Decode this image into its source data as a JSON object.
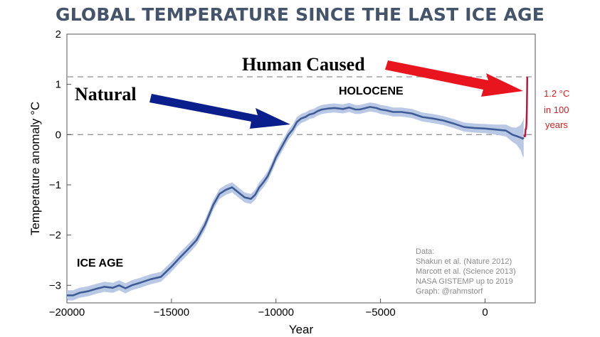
{
  "chart_data": {
    "type": "line",
    "title": "GLOBAL TEMPERATURE SINCE THE LAST ICE AGE",
    "xlabel": "Year",
    "ylabel": "Temperature anomaly °C",
    "xlim": [
      -20000,
      2400
    ],
    "ylim": [
      -3.35,
      2
    ],
    "xticks": [
      -20000,
      -15000,
      -10000,
      -5000,
      0
    ],
    "xtick_labels": [
      "−20000",
      "−15000",
      "−10000",
      "−5000",
      "0"
    ],
    "yticks": [
      -3,
      -2,
      -1,
      0,
      1,
      2
    ],
    "ytick_labels": [
      "−3",
      "−2",
      "−1",
      "0",
      "1",
      "2"
    ],
    "reference_lines": [
      0,
      1.15
    ],
    "grid": false,
    "colors": {
      "line": "#3f5c96",
      "band": "#b9c8e4",
      "modern": "#c0143c",
      "natural_arrow": "#0a1e8c",
      "human_arrow": "#e8141e",
      "reference": "#9a9a9a"
    },
    "series": [
      {
        "x": [
          -20000,
          -19700,
          -19400,
          -19000,
          -18600,
          -18200,
          -17800,
          -17500,
          -17200,
          -16900,
          -16500,
          -16000,
          -15500,
          -15000,
          -14600,
          -14200,
          -13800,
          -13400,
          -13000,
          -12700,
          -12400,
          -12100,
          -11800,
          -11500,
          -11200,
          -11000,
          -10800,
          -10600,
          -10400,
          -10200,
          -10000,
          -9800,
          -9600,
          -9400,
          -9200,
          -9000,
          -8800,
          -8600,
          -8400,
          -8200,
          -8000,
          -7800,
          -7500,
          -7200,
          -7000,
          -6800,
          -6500,
          -6200,
          -6000,
          -5800,
          -5500,
          -5200,
          -5000,
          -4700,
          -4400,
          -4000,
          -3500,
          -3000,
          -2500,
          -2000,
          -1500,
          -1000,
          -500,
          0,
          500,
          1000,
          1300,
          1500,
          1700,
          1800,
          1850
        ],
        "y": [
          -3.2,
          -3.2,
          -3.15,
          -3.12,
          -3.07,
          -3.03,
          -3.05,
          -3.0,
          -3.06,
          -3.0,
          -2.95,
          -2.88,
          -2.83,
          -2.63,
          -2.45,
          -2.28,
          -2.1,
          -1.8,
          -1.4,
          -1.18,
          -1.1,
          -1.05,
          -1.15,
          -1.25,
          -1.28,
          -1.2,
          -1.05,
          -0.95,
          -0.83,
          -0.65,
          -0.45,
          -0.3,
          -0.15,
          0.0,
          0.1,
          0.25,
          0.32,
          0.35,
          0.4,
          0.42,
          0.47,
          0.5,
          0.52,
          0.53,
          0.52,
          0.51,
          0.54,
          0.5,
          0.5,
          0.52,
          0.55,
          0.53,
          0.5,
          0.48,
          0.45,
          0.45,
          0.42,
          0.35,
          0.32,
          0.28,
          0.22,
          0.15,
          0.13,
          0.12,
          0.1,
          0.08,
          0.0,
          -0.03,
          -0.06,
          -0.08,
          -0.06
        ],
        "uncertainty": [
          0.1,
          0.1,
          0.1,
          0.1,
          0.1,
          0.1,
          0.1,
          0.1,
          0.1,
          0.1,
          0.1,
          0.1,
          0.1,
          0.1,
          0.1,
          0.1,
          0.1,
          0.1,
          0.1,
          0.1,
          0.1,
          0.1,
          0.1,
          0.1,
          0.1,
          0.1,
          0.1,
          0.1,
          0.1,
          0.1,
          0.1,
          0.1,
          0.1,
          0.1,
          0.1,
          0.1,
          0.09,
          0.09,
          0.09,
          0.09,
          0.09,
          0.09,
          0.09,
          0.09,
          0.09,
          0.09,
          0.09,
          0.09,
          0.09,
          0.09,
          0.09,
          0.09,
          0.09,
          0.09,
          0.09,
          0.09,
          0.09,
          0.09,
          0.09,
          0.09,
          0.09,
          0.09,
          0.09,
          0.09,
          0.1,
          0.12,
          0.14,
          0.17,
          0.25,
          0.35,
          0.4
        ]
      },
      {
        "x": [
          1880,
          1900,
          1920,
          1940,
          1960,
          1980,
          2000,
          2019
        ],
        "y": [
          0.0,
          -0.05,
          0.0,
          0.12,
          0.1,
          0.22,
          0.55,
          1.15
        ]
      }
    ],
    "annotations": {
      "natural": "Natural",
      "human": "Human Caused",
      "holocene": "HOLOCENE",
      "ice_age": "ICE AGE",
      "modern_change": [
        "1.2 °C",
        "in 100",
        "years"
      ]
    },
    "sources": [
      "Data:",
      "Shakun et al. (Nature 2012)",
      "Marcott et al. (Science 2013)",
      "NASA GISTEMP up to 2019",
      "Graph: @rahmstorf"
    ]
  }
}
